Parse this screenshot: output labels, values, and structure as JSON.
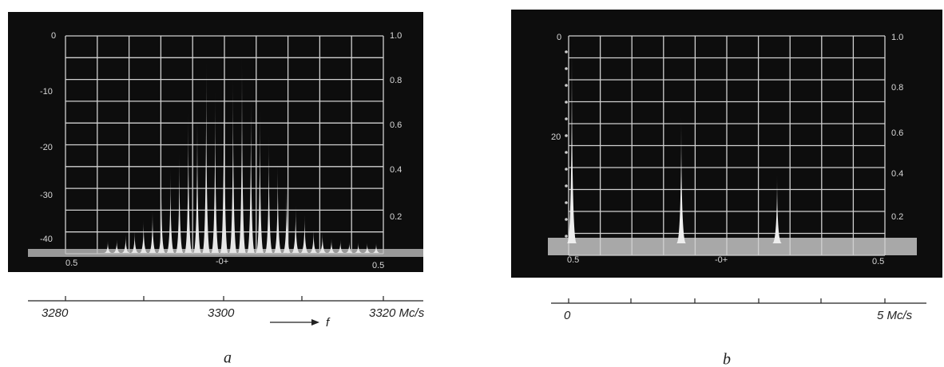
{
  "panel_a": {
    "left_scale": [
      "0",
      "-10",
      "-20",
      "-30",
      "-40"
    ],
    "right_scale": [
      "1.0",
      "0.8",
      "0.6",
      "0.4",
      "0.2"
    ],
    "bottom_scale": [
      "0.5",
      "-0+",
      "0.5"
    ],
    "frequency_axis": [
      "3280",
      "3300",
      "3320 Mc/s"
    ],
    "arrow_label": "f",
    "caption": "a"
  },
  "panel_b": {
    "left_scale": [
      "0",
      "20"
    ],
    "right_scale": [
      "1.0",
      "0.8",
      "0.6",
      "0.4",
      "0.2"
    ],
    "bottom_scale": [
      "0.5",
      "-0+",
      "0.5"
    ],
    "frequency_axis": [
      "0",
      "5 Mc/s"
    ],
    "caption": "b"
  }
}
